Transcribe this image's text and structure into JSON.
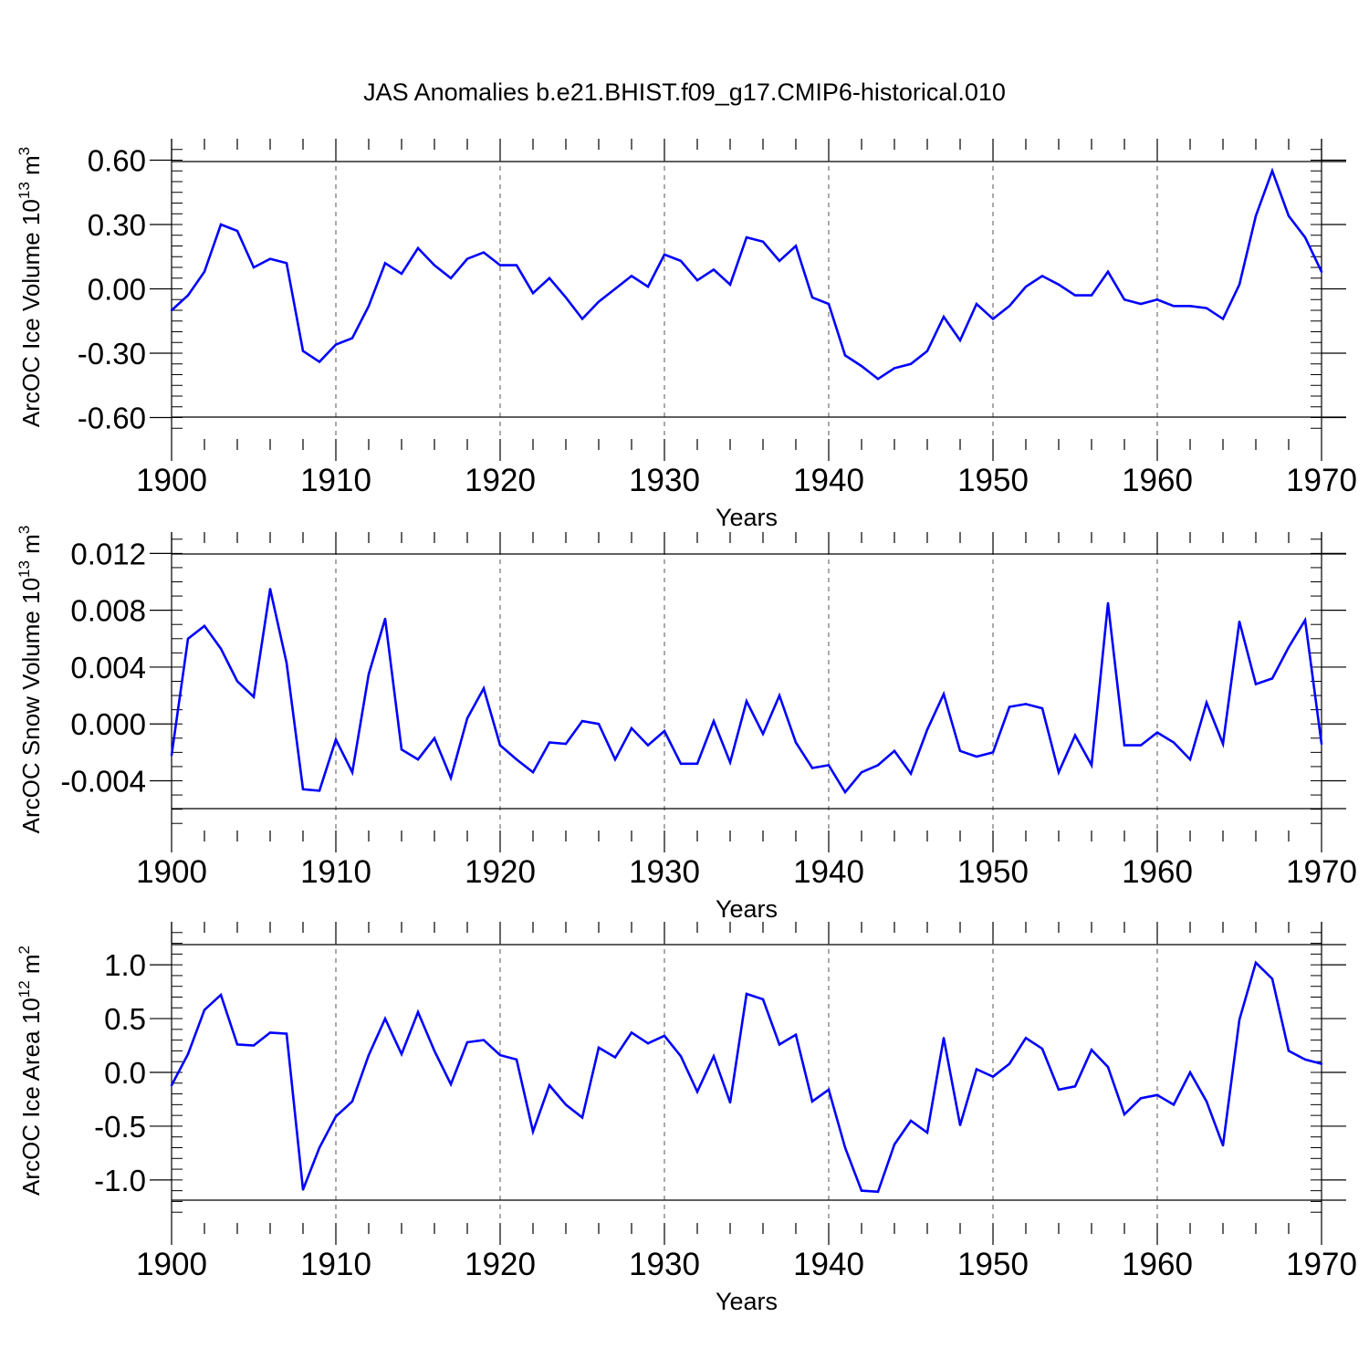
{
  "title": "JAS Anomalies b.e21.BHIST.f09_g17.CMIP6-historical.010",
  "colors": {
    "line": "#0000ff",
    "axis": "#000000",
    "grid": "#555555"
  },
  "chart_data": [
    {
      "type": "line",
      "ylabel_main": "ArcOC Ice Volume 10",
      "ylabel_exp": "13",
      "ylabel_unit": "m",
      "ylabel_unit_exp": "3",
      "xlabel": "Years",
      "xlim": [
        1900,
        1970
      ],
      "ylim": [
        -0.7,
        0.6
      ],
      "xticks": [
        "1900",
        "1910",
        "1920",
        "1930",
        "1940",
        "1950",
        "1960",
        "1970"
      ],
      "yticks": [
        "0.60",
        "0.30",
        "0.00",
        "-0.30",
        "-0.60"
      ],
      "ytick_values": [
        0.6,
        0.3,
        0.0,
        -0.3,
        -0.6
      ],
      "grid": "vertical dashed",
      "x": [
        1900,
        1901,
        1902,
        1903,
        1904,
        1905,
        1906,
        1907,
        1908,
        1909,
        1910,
        1911,
        1912,
        1913,
        1914,
        1915,
        1916,
        1917,
        1918,
        1919,
        1920,
        1921,
        1922,
        1923,
        1924,
        1925,
        1926,
        1927,
        1928,
        1929,
        1930,
        1931,
        1932,
        1933,
        1934,
        1935,
        1936,
        1937,
        1938,
        1939,
        1940,
        1941,
        1942,
        1943,
        1944,
        1945,
        1946,
        1947,
        1948,
        1949,
        1950,
        1951,
        1952,
        1953,
        1954,
        1955,
        1956,
        1957,
        1958,
        1959,
        1960,
        1961,
        1962,
        1963,
        1964,
        1965,
        1966,
        1967,
        1968,
        1969,
        1970
      ],
      "values": [
        -0.1,
        -0.03,
        0.08,
        0.3,
        0.27,
        0.1,
        0.14,
        0.12,
        -0.29,
        -0.34,
        -0.26,
        -0.23,
        -0.08,
        0.12,
        0.07,
        0.19,
        0.11,
        0.05,
        0.14,
        0.17,
        0.11,
        0.11,
        -0.02,
        0.05,
        -0.04,
        -0.14,
        -0.06,
        0.0,
        0.06,
        0.01,
        0.16,
        0.13,
        0.04,
        0.09,
        0.02,
        0.24,
        0.22,
        0.13,
        0.2,
        -0.04,
        -0.07,
        -0.31,
        -0.36,
        -0.42,
        -0.37,
        -0.35,
        -0.29,
        -0.13,
        -0.24,
        -0.07,
        -0.14,
        -0.08,
        0.01,
        0.06,
        0.02,
        -0.03,
        -0.03,
        0.08,
        -0.05,
        -0.07,
        -0.05,
        -0.08,
        -0.08,
        -0.09,
        -0.14,
        0.02,
        0.34,
        0.55,
        0.34,
        0.24,
        0.08
      ]
    },
    {
      "type": "line",
      "ylabel_main": "ArcOC Snow Volume 10",
      "ylabel_exp": "13",
      "ylabel_unit": "m",
      "ylabel_unit_exp": "3",
      "xlabel": "Years",
      "xlim": [
        1900,
        1970
      ],
      "ylim": [
        -0.006,
        0.012
      ],
      "xticks": [
        "1900",
        "1910",
        "1920",
        "1930",
        "1940",
        "1950",
        "1960",
        "1970"
      ],
      "yticks": [
        "0.012",
        "0.008",
        "0.004",
        "0.000",
        "-0.004"
      ],
      "ytick_values": [
        0.012,
        0.008,
        0.004,
        0.0,
        -0.004
      ],
      "grid": "vertical dashed",
      "x": [
        1900,
        1901,
        1902,
        1903,
        1904,
        1905,
        1906,
        1907,
        1908,
        1909,
        1910,
        1911,
        1912,
        1913,
        1914,
        1915,
        1916,
        1917,
        1918,
        1919,
        1920,
        1921,
        1922,
        1923,
        1924,
        1925,
        1926,
        1927,
        1928,
        1929,
        1930,
        1931,
        1932,
        1933,
        1934,
        1935,
        1936,
        1937,
        1938,
        1939,
        1940,
        1941,
        1942,
        1943,
        1944,
        1945,
        1946,
        1947,
        1948,
        1949,
        1950,
        1951,
        1952,
        1953,
        1954,
        1955,
        1956,
        1957,
        1958,
        1959,
        1960,
        1961,
        1962,
        1963,
        1964,
        1965,
        1966,
        1967,
        1968,
        1969,
        1970
      ],
      "values": [
        -0.0022,
        0.006,
        0.0069,
        0.0053,
        0.003,
        0.0019,
        0.0095,
        0.0043,
        -0.0046,
        -0.0047,
        -0.0011,
        -0.0034,
        0.0035,
        0.0074,
        -0.0018,
        -0.0025,
        -0.001,
        -0.0038,
        0.0004,
        0.0025,
        -0.0015,
        -0.0025,
        -0.0034,
        -0.0013,
        -0.0014,
        0.0002,
        0.0,
        -0.0025,
        -0.0003,
        -0.0015,
        -0.0005,
        -0.0028,
        -0.0028,
        0.0002,
        -0.0027,
        0.0016,
        -0.0007,
        0.002,
        -0.0013,
        -0.0031,
        -0.0029,
        -0.0048,
        -0.0034,
        -0.0029,
        -0.0019,
        -0.0035,
        -0.0004,
        0.0021,
        -0.0019,
        -0.0023,
        -0.002,
        0.0012,
        0.0014,
        0.0011,
        -0.0034,
        -0.0008,
        -0.0029,
        0.0085,
        -0.0015,
        -0.0015,
        -0.0006,
        -0.0013,
        -0.0025,
        0.0015,
        -0.0014,
        0.0072,
        0.0028,
        0.0032,
        0.0054,
        0.0073,
        -0.0014
      ]
    },
    {
      "type": "line",
      "ylabel_main": "ArcOC Ice Area 10",
      "ylabel_exp": "12",
      "ylabel_unit": "m",
      "ylabel_unit_exp": "2",
      "xlabel": "Years",
      "xlim": [
        1900,
        1970
      ],
      "ylim": [
        -1.2,
        1.2
      ],
      "xticks": [
        "1900",
        "1910",
        "1920",
        "1930",
        "1940",
        "1950",
        "1960",
        "1970"
      ],
      "yticks": [
        "1.0",
        "0.5",
        "0.0",
        "-0.5",
        "-1.0"
      ],
      "ytick_values": [
        1.0,
        0.5,
        0.0,
        -0.5,
        -1.0
      ],
      "grid": "vertical dashed",
      "x": [
        1900,
        1901,
        1902,
        1903,
        1904,
        1905,
        1906,
        1907,
        1908,
        1909,
        1910,
        1911,
        1912,
        1913,
        1914,
        1915,
        1916,
        1917,
        1918,
        1919,
        1920,
        1921,
        1922,
        1923,
        1924,
        1925,
        1926,
        1927,
        1928,
        1929,
        1930,
        1931,
        1932,
        1933,
        1934,
        1935,
        1936,
        1937,
        1938,
        1939,
        1940,
        1941,
        1942,
        1943,
        1944,
        1945,
        1946,
        1947,
        1948,
        1949,
        1950,
        1951,
        1952,
        1953,
        1954,
        1955,
        1956,
        1957,
        1958,
        1959,
        1960,
        1961,
        1962,
        1963,
        1964,
        1965,
        1966,
        1967,
        1968,
        1969,
        1970
      ],
      "values": [
        -0.12,
        0.17,
        0.58,
        0.72,
        0.26,
        0.25,
        0.37,
        0.36,
        -1.09,
        -0.7,
        -0.41,
        -0.27,
        0.16,
        0.5,
        0.17,
        0.56,
        0.2,
        -0.11,
        0.28,
        0.3,
        0.16,
        0.12,
        -0.55,
        -0.12,
        -0.3,
        -0.42,
        0.23,
        0.14,
        0.37,
        0.27,
        0.34,
        0.15,
        -0.18,
        0.15,
        -0.28,
        0.73,
        0.68,
        0.26,
        0.35,
        -0.27,
        -0.16,
        -0.7,
        -1.1,
        -1.11,
        -0.67,
        -0.45,
        -0.56,
        0.32,
        -0.49,
        0.03,
        -0.04,
        0.08,
        0.32,
        0.22,
        -0.16,
        -0.13,
        0.21,
        0.05,
        -0.39,
        -0.24,
        -0.21,
        -0.3,
        0.0,
        -0.27,
        -0.68,
        0.49,
        1.02,
        0.87,
        0.2,
        0.12,
        0.08
      ]
    }
  ]
}
